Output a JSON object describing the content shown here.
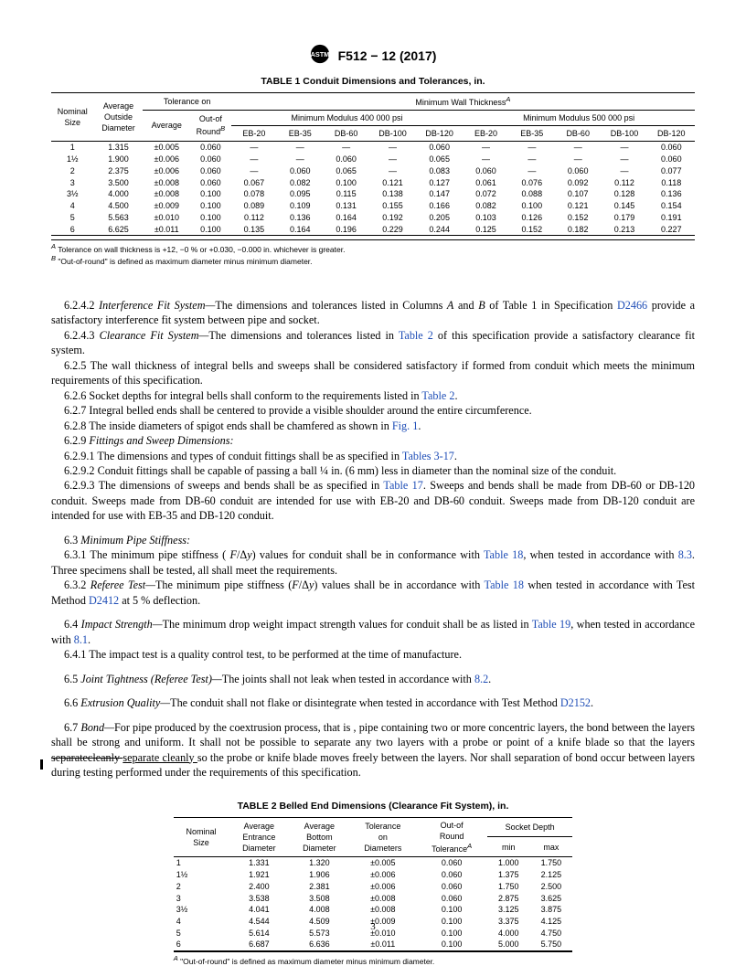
{
  "header": {
    "designation": "F512 − 12 (2017)"
  },
  "table1": {
    "caption": "TABLE 1 Conduit Dimensions and Tolerances, in.",
    "group_header": {
      "nominal": "Nominal\nSize",
      "avg_od": "Average\nOutside\nDiameter",
      "tol_on": "Tolerance on",
      "min_wall": "Minimum Wall ThicknessA",
      "average": "Average",
      "out_of_round": "Out-of\nRoundB",
      "mod400": "Minimum Modulus 400 000 psi",
      "mod500": "Minimum Modulus 500 000 psi"
    },
    "subcols": [
      "EB-20",
      "EB-35",
      "DB-60",
      "DB-100",
      "DB-120",
      "EB-20",
      "EB-35",
      "DB-60",
      "DB-100",
      "DB-120"
    ],
    "rows": [
      {
        "size": "1",
        "od": "1.315",
        "avg": "±0.005",
        "oor": "0.060",
        "v": [
          "—",
          "—",
          "—",
          "—",
          "0.060",
          "—",
          "—",
          "—",
          "—",
          "0.060"
        ]
      },
      {
        "size": "1½",
        "od": "1.900",
        "avg": "±0.006",
        "oor": "0.060",
        "v": [
          "—",
          "—",
          "0.060",
          "—",
          "0.065",
          "—",
          "—",
          "—",
          "—",
          "0.060"
        ]
      },
      {
        "size": "2",
        "od": "2.375",
        "avg": "±0.006",
        "oor": "0.060",
        "v": [
          "—",
          "0.060",
          "0.065",
          "—",
          "0.083",
          "0.060",
          "—",
          "0.060",
          "—",
          "0.077"
        ]
      },
      {
        "size": "3",
        "od": "3.500",
        "avg": "±0.008",
        "oor": "0.060",
        "v": [
          "0.067",
          "0.082",
          "0.100",
          "0.121",
          "0.127",
          "0.061",
          "0.076",
          "0.092",
          "0.112",
          "0.118"
        ]
      },
      {
        "size": "3½",
        "od": "4.000",
        "avg": "±0.008",
        "oor": "0.100",
        "v": [
          "0.078",
          "0.095",
          "0.115",
          "0.138",
          "0.147",
          "0.072",
          "0.088",
          "0.107",
          "0.128",
          "0.136"
        ]
      },
      {
        "size": "4",
        "od": "4.500",
        "avg": "±0.009",
        "oor": "0.100",
        "v": [
          "0.089",
          "0.109",
          "0.131",
          "0.155",
          "0.166",
          "0.082",
          "0.100",
          "0.121",
          "0.145",
          "0.154"
        ]
      },
      {
        "size": "5",
        "od": "5.563",
        "avg": "±0.010",
        "oor": "0.100",
        "v": [
          "0.112",
          "0.136",
          "0.164",
          "0.192",
          "0.205",
          "0.103",
          "0.126",
          "0.152",
          "0.179",
          "0.191"
        ]
      },
      {
        "size": "6",
        "od": "6.625",
        "avg": "±0.011",
        "oor": "0.100",
        "v": [
          "0.135",
          "0.164",
          "0.196",
          "0.229",
          "0.244",
          "0.125",
          "0.152",
          "0.182",
          "0.213",
          "0.227"
        ]
      }
    ],
    "footnotes": {
      "A": "Tolerance on wall thickness is +12, −0 % or +0.030, −0.000 in. whichever is greater.",
      "B": "\"Out-of-round\" is defined as maximum diameter minus minimum diameter."
    }
  },
  "body": {
    "p1_a": "6.2.4.2 ",
    "p1_i": "Interference Fit System—",
    "p1_b": "The dimensions and tolerances listed in Columns ",
    "p1_c": " and ",
    "p1_d": " of Table 1 in Specification ",
    "p1_link": "D2466",
    "p1_e": " provide a satisfactory interference fit system between pipe and socket.",
    "p2_a": "6.2.4.3 ",
    "p2_i": "Clearance Fit System—",
    "p2_b": "The dimensions and tolerances listed in ",
    "p2_link": "Table 2",
    "p2_c": " of this specification provide a satisfactory clearance fit system.",
    "p3": "6.2.5 The wall thickness of integral bells and sweeps shall be considered satisfactory if formed from conduit which meets the minimum requirements of this specification.",
    "p4_a": "6.2.6 Socket depths for integral bells shall conform to the requirements listed in ",
    "p4_link": "Table 2",
    "p4_b": ".",
    "p5": "6.2.7 Integral belled ends shall be centered to provide a visible shoulder around the entire circumference.",
    "p6_a": "6.2.8 The inside diameters of spigot ends shall be chamfered as shown in ",
    "p6_link": "Fig. 1",
    "p6_b": ".",
    "p7_a": "6.2.9 ",
    "p7_i": "Fittings and Sweep Dimensions:",
    "p8_a": "6.2.9.1 The dimensions and types of conduit fittings shall be as specified in ",
    "p8_link": "Tables 3-17",
    "p8_b": ".",
    "p9": "6.2.9.2 Conduit fittings shall be capable of passing a ball ¼ in. (6 mm) less in diameter than the nominal size of the conduit.",
    "p10_a": "6.2.9.3 The dimensions of sweeps and bends shall be as specified in ",
    "p10_link": "Table 17",
    "p10_b": ". Sweeps and bends shall be made from DB-60 or DB-120 conduit. Sweeps made from DB-60 conduit are intended for use with EB-20 and DB-60 conduit. Sweeps made from DB-120 conduit are intended for use with EB-35 and DB-120 conduit.",
    "s63": "6.3 ",
    "s63_i": "Minimum Pipe Stiffness:",
    "p11_a": "6.3.1 The minimum pipe stiffness ( ",
    "p11_b": ") values for conduit shall be in conformance with ",
    "p11_link": "Table 18",
    "p11_c": ", when tested in accordance with ",
    "p11_link2": "8.3",
    "p11_d": ". Three specimens shall be tested, all shall meet the requirements.",
    "p12_a": "6.3.2 ",
    "p12_i": "Referee Test—",
    "p12_b": "The minimum pipe stiffness (",
    "p12_c": ") values shall be in accordance with ",
    "p12_link": "Table 18",
    "p12_d": " when tested in accordance with Test Method ",
    "p12_link2": "D2412",
    "p12_e": " at 5 % deflection.",
    "p13_a": "6.4 ",
    "p13_i": "Impact Strength—",
    "p13_b": "The minimum drop weight impact strength values for conduit shall be as listed in ",
    "p13_link": "Table 19",
    "p13_c": ", when tested in accordance with ",
    "p13_link2": "8.1",
    "p13_d": ".",
    "p14": "6.4.1 The impact test is a quality control test, to be performed at the time of manufacture.",
    "p15_a": "6.5 ",
    "p15_i": "Joint Tightness (Referee Test)—",
    "p15_b": "The joints shall not leak when tested in accordance with ",
    "p15_link": "8.2",
    "p15_c": ".",
    "p16_a": "6.6 ",
    "p16_i": "Extrusion Quality—",
    "p16_b": "The conduit shall not flake or disintegrate when tested in accordance with Test Method ",
    "p16_link": "D2152",
    "p16_c": ".",
    "p17_a": "6.7 ",
    "p17_i": "Bond—",
    "p17_b": "For pipe produced by the coextrusion process, that is , pipe containing two or more concentric layers, the bond between the layers shall be strong and uniform. It shall not be possible to separate any two layers with a probe or point of a knife blade so that the layers ",
    "p17_strike": "separatecleanly ",
    "p17_ul": "separate cleanly ",
    "p17_c": "so the probe or knife blade moves freely between the layers. Nor shall separation of bond occur between layers during testing performed under the requirements of this specification."
  },
  "table2": {
    "caption": "TABLE 2 Belled End Dimensions (Clearance Fit System), in.",
    "cols": {
      "nominal": "Nominal\nSize",
      "avg_ent": "Average\nEntrance\nDiameter",
      "avg_bot": "Average\nBottom\nDiameter",
      "tol": "Tolerance\non\nDiameters",
      "oor": "Out-of\nRound\nToleranceA",
      "sd": "Socket Depth",
      "min": "min",
      "max": "max"
    },
    "rows": [
      {
        "size": "1",
        "ent": "1.331",
        "bot": "1.320",
        "tol": "±0.005",
        "oor": "0.060",
        "min": "1.000",
        "max": "1.750"
      },
      {
        "size": "1½",
        "ent": "1.921",
        "bot": "1.906",
        "tol": "±0.006",
        "oor": "0.060",
        "min": "1.375",
        "max": "2.125"
      },
      {
        "size": "2",
        "ent": "2.400",
        "bot": "2.381",
        "tol": "±0.006",
        "oor": "0.060",
        "min": "1.750",
        "max": "2.500"
      },
      {
        "size": "3",
        "ent": "3.538",
        "bot": "3.508",
        "tol": "±0.008",
        "oor": "0.060",
        "min": "2.875",
        "max": "3.625"
      },
      {
        "size": "3½",
        "ent": "4.041",
        "bot": "4.008",
        "tol": "±0.008",
        "oor": "0.100",
        "min": "3.125",
        "max": "3.875"
      },
      {
        "size": "4",
        "ent": "4.544",
        "bot": "4.509",
        "tol": "±0.009",
        "oor": "0.100",
        "min": "3.375",
        "max": "4.125"
      },
      {
        "size": "5",
        "ent": "5.614",
        "bot": "5.573",
        "tol": "±0.010",
        "oor": "0.100",
        "min": "4.000",
        "max": "4.750"
      },
      {
        "size": "6",
        "ent": "6.687",
        "bot": "6.636",
        "tol": "±0.011",
        "oor": "0.100",
        "min": "5.000",
        "max": "5.750"
      }
    ],
    "footnote": "\"Out-of-round\" is defined as maximum diameter minus minimum diameter."
  },
  "page_number": "3"
}
